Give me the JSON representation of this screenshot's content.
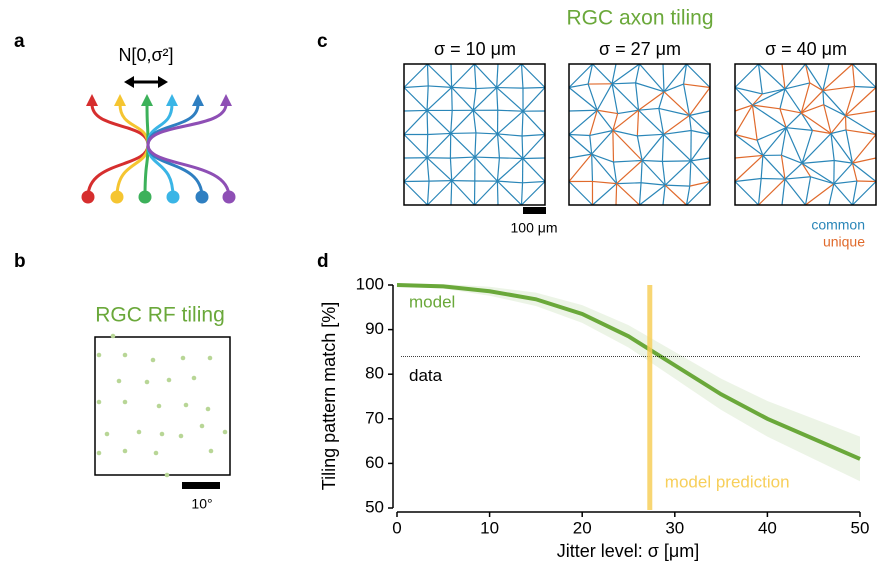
{
  "panels": {
    "a": {
      "label": "a",
      "formula": "N[0,σ²]"
    },
    "b": {
      "label": "b",
      "title": "RGC RF tiling",
      "scale": "10°"
    },
    "c": {
      "label": "c",
      "title": "RGC axon tiling",
      "subtitles": [
        "σ = 10 μm",
        "σ = 27 μm",
        "σ = 40 μm"
      ],
      "scale": "100 μm",
      "legend": [
        "common",
        "unique"
      ]
    }
  },
  "chart_data": {
    "type": "line",
    "label": "d",
    "x_label": "Jitter level: σ [μm]",
    "y_label": "Tiling pattern match [%]",
    "x": [
      0,
      5,
      10,
      15,
      20,
      25,
      30,
      35,
      40,
      45,
      50
    ],
    "series": [
      {
        "name": "model",
        "color": "#6aa83a",
        "values": [
          100,
          99.7,
          98.6,
          96.8,
          93.5,
          88.5,
          82,
          75.5,
          70,
          65.5,
          61
        ],
        "error": [
          0.3,
          0.5,
          1,
          1.5,
          2,
          2.5,
          3,
          3.5,
          4,
          4.5,
          5
        ]
      }
    ],
    "annotations": [
      {
        "text": "data",
        "y": 84,
        "color": "#000000"
      },
      {
        "text": "model prediction",
        "x": 27.3,
        "color": "#f7cf5a"
      }
    ],
    "xlim": [
      0,
      50
    ],
    "xticks": [
      0,
      10,
      20,
      30,
      40,
      50
    ],
    "ylim": [
      50,
      100
    ],
    "yticks": [
      50,
      60,
      70,
      80,
      90,
      100
    ]
  }
}
